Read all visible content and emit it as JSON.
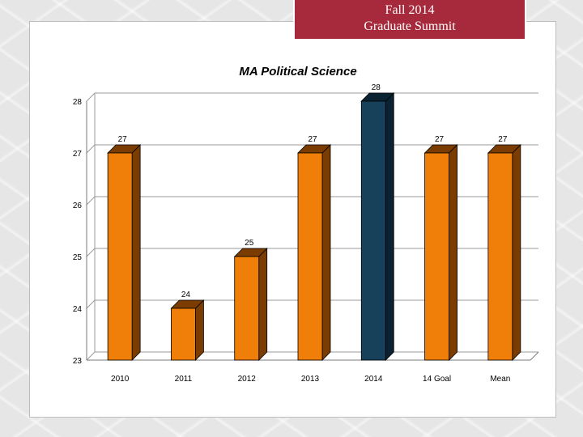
{
  "slide": {
    "banner_line1": "Fall 2014",
    "banner_line2": "Graduate Summit",
    "banner_color": "#a62a3b"
  },
  "chart_data": {
    "type": "bar",
    "title": "MA Political Science",
    "categories": [
      "2010",
      "2011",
      "2012",
      "2013",
      "2014",
      "14 Goal",
      "Mean"
    ],
    "values": [
      27,
      24,
      25,
      27,
      28,
      27,
      27
    ],
    "labels": [
      "27",
      "24",
      "25",
      "27",
      "28",
      "27",
      "27"
    ],
    "ylim": [
      23,
      28
    ],
    "yticks": [
      "23",
      "24",
      "25",
      "26",
      "27",
      "28"
    ],
    "xlabel": "",
    "ylabel": "",
    "grid": true,
    "style": "3d",
    "colors": {
      "default": "#f07f09",
      "default_side": "#7a3c00",
      "highlight": "#17405a",
      "highlight_side": "#0b2232"
    },
    "highlight_index": 4
  }
}
